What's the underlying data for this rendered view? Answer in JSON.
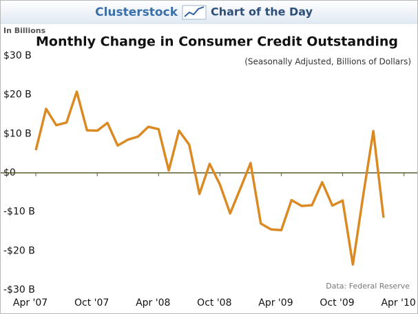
{
  "header": {
    "brand": "Clusterstock",
    "tagline": "Chart of the Day"
  },
  "chart_data": {
    "type": "line",
    "title": "Monthly Change in Consumer Credit Outstanding",
    "subtitle": "(Seasonally Adjusted, Billions of Dollars)",
    "y_axis_label": "In Billions",
    "source": "Data: Federal Reserve",
    "x": [
      0,
      1,
      2,
      3,
      4,
      5,
      6,
      7,
      8,
      9,
      10,
      11,
      12,
      13,
      14,
      15,
      16,
      17,
      18,
      19,
      20,
      21,
      22,
      23,
      24,
      25,
      26,
      27,
      28,
      29,
      30,
      31,
      32,
      33,
      34
    ],
    "series": [
      {
        "name": "Monthly Change",
        "color": "#db8a23",
        "values": [
          5.8,
          16.4,
          12.2,
          12.9,
          20.8,
          10.9,
          10.8,
          12.8,
          7.0,
          8.5,
          9.3,
          11.8,
          11.2,
          0.6,
          10.8,
          7.2,
          -5.4,
          2.3,
          -3.0,
          -10.4,
          -4.0,
          2.5,
          -13.0,
          -14.5,
          -14.7,
          -7.0,
          -8.5,
          -8.3,
          -2.4,
          -8.4,
          -7.1,
          -23.5,
          -6.0,
          10.7,
          -11.5
        ]
      }
    ],
    "xlim": [
      -3,
      37
    ],
    "xticks": [
      {
        "value": 0,
        "label": "Apr '07"
      },
      {
        "value": 6,
        "label": "Oct '07"
      },
      {
        "value": 12,
        "label": "Apr '08"
      },
      {
        "value": 18,
        "label": "Oct '08"
      },
      {
        "value": 24,
        "label": "Apr '09"
      },
      {
        "value": 30,
        "label": "Oct '09"
      },
      {
        "value": 36,
        "label": "Apr '10"
      }
    ],
    "ylim": [
      -30,
      30
    ],
    "yticks": [
      {
        "value": -30,
        "label": "-$30 B"
      },
      {
        "value": -20,
        "label": "-$20 B"
      },
      {
        "value": -10,
        "label": "-$10 B"
      },
      {
        "value": 0,
        "label": "$0"
      },
      {
        "value": 10,
        "label": "$10 B"
      },
      {
        "value": 20,
        "label": "$20 B"
      },
      {
        "value": 30,
        "label": "$30 B"
      }
    ]
  }
}
